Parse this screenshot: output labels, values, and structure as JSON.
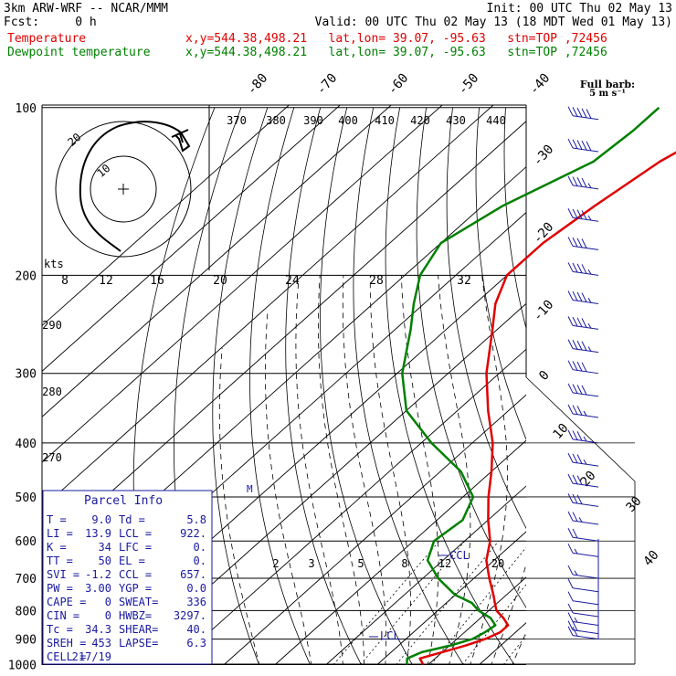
{
  "header": {
    "line1_left": "3km ARW-WRF -- NCAR/MMM",
    "line1_right": "Init: 00 UTC Thu 02 May 13",
    "line2_left": "Fcst:     0 h",
    "line2_right": "Valid: 00 UTC Thu 02 May 13 (18 MDT Wed 01 May 13)",
    "line3_label": "Temperature",
    "line3_info": "x,y=544.38,498.21   lat,lon= 39.07, -95.63   stn=TOP ,72456",
    "line4_label": "Dewpoint temperature",
    "line4_info": "x,y=544.38,498.21   lat,lon= 39.07, -95.63   stn=TOP ,72456"
  },
  "colors": {
    "temperature": "#e00000",
    "dewpoint": "#008000",
    "barbs": "#1a1aa0",
    "grid": "#000000",
    "inset_box": "#1a1aa0"
  },
  "barb_key": {
    "line1": "Full barb:",
    "line2": "5 m s⁻¹"
  },
  "hodograph": {
    "speed_label": "kts",
    "ring_labels": [
      "10",
      "20"
    ],
    "speed_ticks": [
      "8",
      "12",
      "16",
      "20",
      "24",
      "28",
      "32"
    ]
  },
  "parcel_info": {
    "title": "Parcel Info",
    "rows": [
      [
        "T  =",
        "9.0",
        "Td =",
        "5.8"
      ],
      [
        "LI =",
        "13.9",
        "LCL =",
        "922."
      ],
      [
        "K  =",
        "34",
        "LFC =",
        "0."
      ],
      [
        "TT =",
        "50",
        "EL  =",
        "0."
      ],
      [
        "SVI =",
        "-1.2",
        "CCL =",
        "657."
      ],
      [
        "PW =",
        "3.00",
        "YGP =",
        "0.0"
      ],
      [
        "CAPE =",
        "0",
        "SWEAT=",
        "336"
      ],
      [
        "CIN =",
        "0",
        "HWBZ=",
        "3297."
      ],
      [
        "Tc =",
        "34.3",
        "SHEAR=",
        "40."
      ],
      [
        "SREH =",
        "453",
        "LAPSE=",
        "6.3"
      ],
      [
        "CELL =",
        "217/19",
        "",
        ""
      ]
    ]
  },
  "markers": {
    "ccl": "CCL",
    "lcl": "LCL"
  },
  "chart_data": {
    "type": "line",
    "title": "",
    "ylabel": "",
    "y_scale": "log-pressure (hPa), inverted",
    "pressure_ticks": [
      "100",
      "200",
      "300",
      "400",
      "500",
      "600",
      "700",
      "800",
      "900",
      "1000"
    ],
    "isotherm_labels": [
      "-80",
      "-70",
      "-60",
      "-50",
      "-40",
      "-30",
      "-20",
      "-10",
      "0",
      "10",
      "20",
      "30",
      "40"
    ],
    "theta_labels_top": [
      "370",
      "380",
      "390",
      "400",
      "410",
      "420",
      "430",
      "440"
    ],
    "theta_labels_left": [
      "290",
      "280",
      "270"
    ],
    "mixing_ratio_labels": [
      "2",
      "3",
      "5",
      "8",
      "12",
      "20"
    ],
    "series": [
      {
        "name": "Temperature",
        "color": "#e00000",
        "points": [
          {
            "p": 1000,
            "t": 9.0
          },
          {
            "p": 975,
            "t": 7.0
          },
          {
            "p": 950,
            "t": 10.0
          },
          {
            "p": 925,
            "t": 13.0
          },
          {
            "p": 900,
            "t": 15.5
          },
          {
            "p": 875,
            "t": 17.0
          },
          {
            "p": 850,
            "t": 17.0
          },
          {
            "p": 825,
            "t": 14.5
          },
          {
            "p": 800,
            "t": 11.5
          },
          {
            "p": 775,
            "t": 9.5
          },
          {
            "p": 750,
            "t": 7.5
          },
          {
            "p": 700,
            "t": 3.0
          },
          {
            "p": 650,
            "t": -1.5
          },
          {
            "p": 600,
            "t": -5.0
          },
          {
            "p": 550,
            "t": -10.0
          },
          {
            "p": 500,
            "t": -15.0
          },
          {
            "p": 450,
            "t": -20.0
          },
          {
            "p": 400,
            "t": -26.0
          },
          {
            "p": 350,
            "t": -34.0
          },
          {
            "p": 300,
            "t": -42.5
          },
          {
            "p": 250,
            "t": -51.0
          },
          {
            "p": 225,
            "t": -56.0
          },
          {
            "p": 200,
            "t": -60.0
          },
          {
            "p": 175,
            "t": -60.0
          },
          {
            "p": 150,
            "t": -58.0
          },
          {
            "p": 125,
            "t": -55.0
          },
          {
            "p": 110,
            "t": -51.0
          },
          {
            "p": 100,
            "t": -47.0
          }
        ]
      },
      {
        "name": "Dewpoint temperature",
        "color": "#008000",
        "points": [
          {
            "p": 1000,
            "t": 5.8
          },
          {
            "p": 975,
            "t": 4.5
          },
          {
            "p": 950,
            "t": 6.0
          },
          {
            "p": 925,
            "t": 10.0
          },
          {
            "p": 900,
            "t": 13.0
          },
          {
            "p": 875,
            "t": 14.0
          },
          {
            "p": 850,
            "t": 14.5
          },
          {
            "p": 825,
            "t": 12.0
          },
          {
            "p": 800,
            "t": 8.0
          },
          {
            "p": 775,
            "t": 5.0
          },
          {
            "p": 750,
            "t": 0.0
          },
          {
            "p": 700,
            "t": -7.0
          },
          {
            "p": 650,
            "t": -13.0
          },
          {
            "p": 600,
            "t": -16.0
          },
          {
            "p": 550,
            "t": -15.0
          },
          {
            "p": 500,
            "t": -18.0
          },
          {
            "p": 450,
            "t": -26.0
          },
          {
            "p": 400,
            "t": -38.0
          },
          {
            "p": 350,
            "t": -50.0
          },
          {
            "p": 300,
            "t": -59.0
          },
          {
            "p": 250,
            "t": -67.0
          },
          {
            "p": 225,
            "t": -72.0
          },
          {
            "p": 200,
            "t": -77.0
          },
          {
            "p": 175,
            "t": -80.0
          },
          {
            "p": 150,
            "t": -76.0
          },
          {
            "p": 125,
            "t": -68.0
          },
          {
            "p": 110,
            "t": -67.0
          },
          {
            "p": 100,
            "t": -67.0
          }
        ]
      }
    ],
    "wind_barbs": [
      {
        "p": 105,
        "spd": 50
      },
      {
        "p": 120,
        "spd": 50
      },
      {
        "p": 140,
        "spd": 45
      },
      {
        "p": 160,
        "spd": 45
      },
      {
        "p": 180,
        "spd": 40
      },
      {
        "p": 200,
        "spd": 45
      },
      {
        "p": 225,
        "spd": 45
      },
      {
        "p": 250,
        "spd": 45
      },
      {
        "p": 275,
        "spd": 45
      },
      {
        "p": 300,
        "spd": 40
      },
      {
        "p": 330,
        "spd": 40
      },
      {
        "p": 360,
        "spd": 35
      },
      {
        "p": 400,
        "spd": 35
      },
      {
        "p": 440,
        "spd": 35
      },
      {
        "p": 480,
        "spd": 30
      },
      {
        "p": 520,
        "spd": 30
      },
      {
        "p": 560,
        "spd": 25
      },
      {
        "p": 600,
        "spd": 20
      },
      {
        "p": 640,
        "spd": 15
      },
      {
        "p": 700,
        "spd": 15
      },
      {
        "p": 740,
        "spd": 10
      },
      {
        "p": 780,
        "spd": 10
      },
      {
        "p": 820,
        "spd": 10
      },
      {
        "p": 850,
        "spd": 15
      },
      {
        "p": 880,
        "spd": 20
      },
      {
        "p": 900,
        "spd": 20
      }
    ]
  }
}
